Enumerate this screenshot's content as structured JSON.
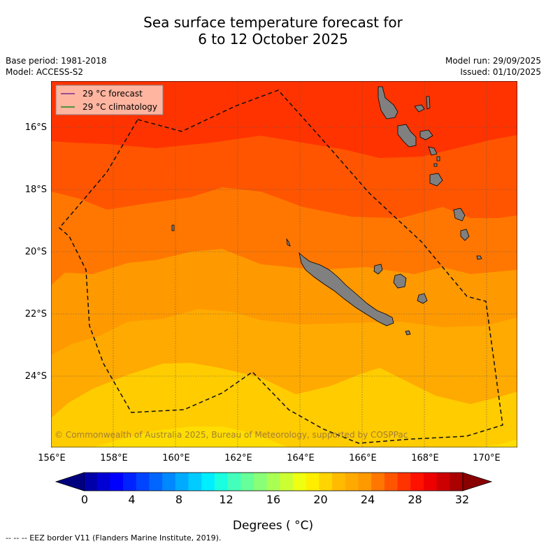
{
  "title": {
    "line1": "Sea surface temperature forecast for",
    "line2": "6 to 12 October 2025"
  },
  "meta": {
    "base_period": "Base period: 1981-2018",
    "model": "Model: ACCESS-S2",
    "model_run": "Model run: 29/09/2025",
    "issued": "Issued: 01/10/2025"
  },
  "legend": {
    "forecast_label": "29 °C  forecast",
    "forecast_color": "#7b2d8e",
    "climatology_label": "29 °C  climatology",
    "climatology_color": "#1a8a1a"
  },
  "map": {
    "lat_labels": [
      "16°S",
      "18°S",
      "20°S",
      "22°S",
      "24°S"
    ],
    "lon_labels": [
      "156°E",
      "158°E",
      "160°E",
      "162°E",
      "164°E",
      "166°E",
      "168°E",
      "170°E"
    ],
    "copyright": "© Commonwealth of Australia 2025, Bureau of Meteorology, supported by COSPPac",
    "land_color": "#808080",
    "band_colors": [
      "#ff3300",
      "#ff5500",
      "#ff7700",
      "#ff9900",
      "#ffaa00",
      "#ffcc00",
      "#ffdd00"
    ]
  },
  "colorbar": {
    "ticks": [
      "0",
      "4",
      "8",
      "12",
      "16",
      "20",
      "24",
      "28",
      "32"
    ],
    "label": "Degrees ( °C)",
    "colors": [
      "#00007f",
      "#0000aa",
      "#0000d4",
      "#0000ff",
      "#0022ff",
      "#0044ff",
      "#0066ff",
      "#0088ff",
      "#00aaff",
      "#00ccff",
      "#00eeff",
      "#1affe0",
      "#44ffbb",
      "#66ff99",
      "#88ff77",
      "#aaff55",
      "#ccff33",
      "#eeff11",
      "#ffee00",
      "#ffd400",
      "#ffbb00",
      "#ffaa00",
      "#ff9900",
      "#ff7700",
      "#ff5500",
      "#ff3300",
      "#ff1100",
      "#ee0000",
      "#cc0000",
      "#aa0000",
      "#880000"
    ]
  },
  "footer": "--  --  -- EEZ border V11 (Flanders Marine Institute, 2019)."
}
